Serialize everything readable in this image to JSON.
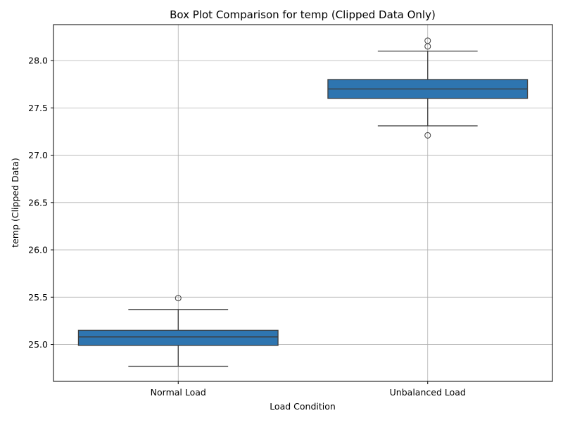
{
  "chart_data": {
    "type": "box",
    "title": "Box Plot Comparison for temp (Clipped Data Only)",
    "xlabel": "Load Condition",
    "ylabel": "temp (Clipped Data)",
    "ylim": [
      24.61,
      28.38
    ],
    "yticks": [
      25.0,
      25.5,
      26.0,
      26.5,
      27.0,
      27.5,
      28.0
    ],
    "ytick_labels": [
      "25.0",
      "25.5",
      "26.0",
      "26.5",
      "27.0",
      "27.5",
      "28.0"
    ],
    "grid": true,
    "box_color": "#2e75b0",
    "line_color": "#3d3d3d",
    "grid_color": "#b0b0b0",
    "categories": [
      "Normal Load",
      "Unbalanced Load"
    ],
    "boxes": [
      {
        "category": "Normal Load",
        "whisker_low": 24.77,
        "q1": 24.99,
        "median": 25.08,
        "q3": 25.15,
        "whisker_high": 25.37,
        "outliers": [
          25.49
        ]
      },
      {
        "category": "Unbalanced Load",
        "whisker_low": 27.31,
        "q1": 27.6,
        "median": 27.7,
        "q3": 27.8,
        "whisker_high": 28.1,
        "outliers": [
          27.21,
          28.15,
          28.21
        ]
      }
    ]
  }
}
